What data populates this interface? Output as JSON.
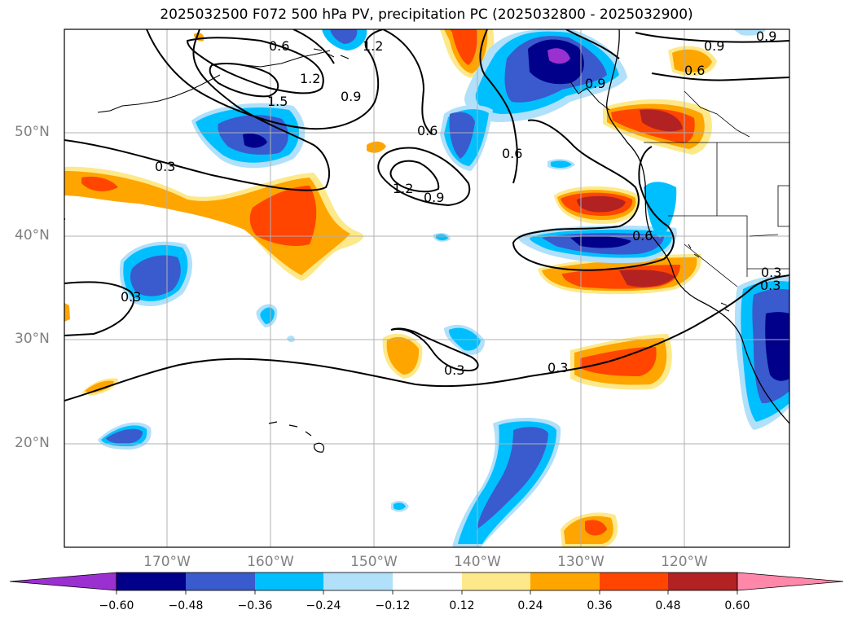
{
  "title": "2025032500 F072 500 hPa PV, precipitation PC (2025032800 - 2025032900)",
  "lat_labels": [
    "50°N",
    "40°N",
    "30°N",
    "20°N"
  ],
  "lon_labels": [
    "170°W",
    "160°W",
    "150°W",
    "140°W",
    "130°W",
    "120°W"
  ],
  "contour_labels": [
    "0.9",
    "0.6",
    "1.2",
    "1.2",
    "1.5",
    "0.9",
    "0.6",
    "0.6",
    "0.3",
    "1.2",
    "0.9",
    "0.6",
    "0.9",
    "0.6",
    "0.3",
    "0.3",
    "0.3",
    "0.3",
    "0.3",
    "0.9"
  ],
  "colorbar": {
    "ticks": [
      "−0.60",
      "−0.48",
      "−0.36",
      "−0.24",
      "−0.12",
      "0.12",
      "0.24",
      "0.36",
      "0.48",
      "0.60"
    ],
    "colors": [
      "#9b30d0",
      "#00008b",
      "#3a5bcd",
      "#00bfff",
      "#b0e0fa",
      "#ffffff",
      "#fde98a",
      "#ffa500",
      "#ff4500",
      "#b22222",
      "#ff88aa"
    ]
  },
  "fill_colors": {
    "neg_light": "#b0e0fa",
    "neg_mid": "#00bfff",
    "neg_deep": "#3a5bcd",
    "neg_darkest": "#00008b",
    "neg_purple": "#9b30d0",
    "pos_light": "#fde98a",
    "pos_mid": "#ffa500",
    "pos_deep": "#ff4500",
    "pos_darkest": "#b22222"
  }
}
